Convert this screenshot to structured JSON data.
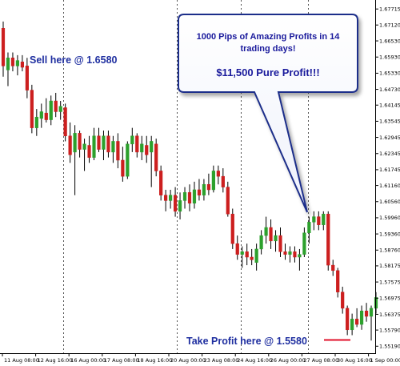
{
  "chart_data": {
    "type": "candlestick",
    "colors": {
      "up": "#2ca02c",
      "down": "#cc1f1f",
      "annotation": "#1f2fa0",
      "bubble_text": "#1a1a9c",
      "bubble_fill": "#ffffff",
      "take_profit_line": "#e0102a"
    },
    "ylim": [
      1.5505,
      1.679
    ],
    "grid": "vertical-dotted",
    "x_tick_labels": [
      "11 Aug 08:00",
      "12 Aug 16:00",
      "16 Aug 00:00",
      "17 Aug 08:00",
      "18 Aug 16:00",
      "20 Aug 00:00",
      "23 Aug 08:00",
      "24 Aug 16:00",
      "26 Aug 00:00",
      "27 Aug 08:00",
      "30 Aug 16:00",
      "1 Sep 00:00"
    ],
    "y_tick_labels": [
      "1.67715",
      "1.67120",
      "1.66530",
      "1.65930",
      "1.65330",
      "1.64730",
      "1.64145",
      "1.63545",
      "1.62945",
      "1.62345",
      "1.61745",
      "1.61160",
      "1.60560",
      "1.59960",
      "1.59360",
      "1.58760",
      "1.58175",
      "1.57575",
      "1.56975",
      "1.56375",
      "1.55790",
      "1.55190"
    ],
    "candles": [
      {
        "o": 1.67,
        "h": 1.6725,
        "l": 1.652,
        "c": 1.656
      },
      {
        "o": 1.6545,
        "h": 1.661,
        "l": 1.6485,
        "c": 1.659
      },
      {
        "o": 1.659,
        "h": 1.661,
        "l": 1.654,
        "c": 1.656
      },
      {
        "o": 1.656,
        "h": 1.66,
        "l": 1.6525,
        "c": 1.658
      },
      {
        "o": 1.6575,
        "h": 1.66,
        "l": 1.654,
        "c": 1.6555
      },
      {
        "o": 1.656,
        "h": 1.659,
        "l": 1.644,
        "c": 1.647
      },
      {
        "o": 1.647,
        "h": 1.649,
        "l": 1.631,
        "c": 1.633
      },
      {
        "o": 1.633,
        "h": 1.64,
        "l": 1.63,
        "c": 1.637
      },
      {
        "o": 1.6365,
        "h": 1.642,
        "l": 1.633,
        "c": 1.639
      },
      {
        "o": 1.6385,
        "h": 1.644,
        "l": 1.635,
        "c": 1.636
      },
      {
        "o": 1.636,
        "h": 1.645,
        "l": 1.634,
        "c": 1.643
      },
      {
        "o": 1.643,
        "h": 1.646,
        "l": 1.637,
        "c": 1.639
      },
      {
        "o": 1.639,
        "h": 1.643,
        "l": 1.636,
        "c": 1.641
      },
      {
        "o": 1.6405,
        "h": 1.642,
        "l": 1.628,
        "c": 1.63
      },
      {
        "o": 1.63,
        "h": 1.635,
        "l": 1.62,
        "c": 1.623
      },
      {
        "o": 1.624,
        "h": 1.634,
        "l": 1.608,
        "c": 1.631
      },
      {
        "o": 1.631,
        "h": 1.632,
        "l": 1.622,
        "c": 1.625
      },
      {
        "o": 1.625,
        "h": 1.629,
        "l": 1.617,
        "c": 1.627
      },
      {
        "o": 1.6265,
        "h": 1.63,
        "l": 1.62,
        "c": 1.622
      },
      {
        "o": 1.622,
        "h": 1.633,
        "l": 1.621,
        "c": 1.63
      },
      {
        "o": 1.63,
        "h": 1.633,
        "l": 1.624,
        "c": 1.625
      },
      {
        "o": 1.625,
        "h": 1.632,
        "l": 1.621,
        "c": 1.63
      },
      {
        "o": 1.63,
        "h": 1.632,
        "l": 1.622,
        "c": 1.624
      },
      {
        "o": 1.624,
        "h": 1.63,
        "l": 1.62,
        "c": 1.628
      },
      {
        "o": 1.628,
        "h": 1.631,
        "l": 1.618,
        "c": 1.621
      },
      {
        "o": 1.621,
        "h": 1.626,
        "l": 1.613,
        "c": 1.615
      },
      {
        "o": 1.615,
        "h": 1.628,
        "l": 1.614,
        "c": 1.627
      },
      {
        "o": 1.627,
        "h": 1.633,
        "l": 1.624,
        "c": 1.63
      },
      {
        "o": 1.63,
        "h": 1.631,
        "l": 1.622,
        "c": 1.624
      },
      {
        "o": 1.624,
        "h": 1.63,
        "l": 1.621,
        "c": 1.627
      },
      {
        "o": 1.6265,
        "h": 1.63,
        "l": 1.62,
        "c": 1.623
      },
      {
        "o": 1.624,
        "h": 1.63,
        "l": 1.611,
        "c": 1.628
      },
      {
        "o": 1.627,
        "h": 1.629,
        "l": 1.615,
        "c": 1.617
      },
      {
        "o": 1.617,
        "h": 1.619,
        "l": 1.606,
        "c": 1.608
      },
      {
        "o": 1.608,
        "h": 1.61,
        "l": 1.602,
        "c": 1.606
      },
      {
        "o": 1.606,
        "h": 1.61,
        "l": 1.603,
        "c": 1.608
      },
      {
        "o": 1.608,
        "h": 1.611,
        "l": 1.6,
        "c": 1.602
      },
      {
        "o": 1.602,
        "h": 1.609,
        "l": 1.599,
        "c": 1.606
      },
      {
        "o": 1.606,
        "h": 1.611,
        "l": 1.603,
        "c": 1.609
      },
      {
        "o": 1.609,
        "h": 1.612,
        "l": 1.602,
        "c": 1.605
      },
      {
        "o": 1.605,
        "h": 1.613,
        "l": 1.603,
        "c": 1.61
      },
      {
        "o": 1.61,
        "h": 1.614,
        "l": 1.606,
        "c": 1.608
      },
      {
        "o": 1.608,
        "h": 1.614,
        "l": 1.606,
        "c": 1.612
      },
      {
        "o": 1.612,
        "h": 1.616,
        "l": 1.608,
        "c": 1.61
      },
      {
        "o": 1.61,
        "h": 1.619,
        "l": 1.609,
        "c": 1.617
      },
      {
        "o": 1.617,
        "h": 1.619,
        "l": 1.612,
        "c": 1.615
      },
      {
        "o": 1.615,
        "h": 1.618,
        "l": 1.609,
        "c": 1.611
      },
      {
        "o": 1.611,
        "h": 1.613,
        "l": 1.6,
        "c": 1.601
      },
      {
        "o": 1.601,
        "h": 1.603,
        "l": 1.588,
        "c": 1.59
      },
      {
        "o": 1.59,
        "h": 1.593,
        "l": 1.584,
        "c": 1.586
      },
      {
        "o": 1.586,
        "h": 1.589,
        "l": 1.581,
        "c": 1.587
      },
      {
        "o": 1.587,
        "h": 1.59,
        "l": 1.582,
        "c": 1.585
      },
      {
        "o": 1.585,
        "h": 1.588,
        "l": 1.582,
        "c": 1.584
      },
      {
        "o": 1.583,
        "h": 1.59,
        "l": 1.58,
        "c": 1.588
      },
      {
        "o": 1.588,
        "h": 1.595,
        "l": 1.586,
        "c": 1.593
      },
      {
        "o": 1.593,
        "h": 1.6,
        "l": 1.59,
        "c": 1.596
      },
      {
        "o": 1.596,
        "h": 1.599,
        "l": 1.588,
        "c": 1.591
      },
      {
        "o": 1.591,
        "h": 1.595,
        "l": 1.587,
        "c": 1.593
      },
      {
        "o": 1.593,
        "h": 1.596,
        "l": 1.585,
        "c": 1.587
      },
      {
        "o": 1.587,
        "h": 1.59,
        "l": 1.584,
        "c": 1.586
      },
      {
        "o": 1.586,
        "h": 1.589,
        "l": 1.583,
        "c": 1.587
      },
      {
        "o": 1.587,
        "h": 1.589,
        "l": 1.583,
        "c": 1.585
      },
      {
        "o": 1.585,
        "h": 1.588,
        "l": 1.58,
        "c": 1.586
      },
      {
        "o": 1.586,
        "h": 1.596,
        "l": 1.585,
        "c": 1.594
      },
      {
        "o": 1.594,
        "h": 1.6,
        "l": 1.59,
        "c": 1.598
      },
      {
        "o": 1.598,
        "h": 1.602,
        "l": 1.595,
        "c": 1.6
      },
      {
        "o": 1.6,
        "h": 1.602,
        "l": 1.595,
        "c": 1.597
      },
      {
        "o": 1.597,
        "h": 1.602,
        "l": 1.595,
        "c": 1.601
      },
      {
        "o": 1.601,
        "h": 1.602,
        "l": 1.58,
        "c": 1.582
      },
      {
        "o": 1.582,
        "h": 1.584,
        "l": 1.578,
        "c": 1.58
      },
      {
        "o": 1.58,
        "h": 1.581,
        "l": 1.57,
        "c": 1.572
      },
      {
        "o": 1.572,
        "h": 1.574,
        "l": 1.564,
        "c": 1.566
      },
      {
        "o": 1.566,
        "h": 1.567,
        "l": 1.556,
        "c": 1.558
      },
      {
        "o": 1.558,
        "h": 1.564,
        "l": 1.556,
        "c": 1.562
      },
      {
        "o": 1.562,
        "h": 1.566,
        "l": 1.559,
        "c": 1.56
      },
      {
        "o": 1.56,
        "h": 1.567,
        "l": 1.558,
        "c": 1.565
      },
      {
        "o": 1.565,
        "h": 1.568,
        "l": 1.561,
        "c": 1.563
      },
      {
        "o": 1.563,
        "h": 1.567,
        "l": 1.554,
        "c": 1.566
      },
      {
        "o": 1.566,
        "h": 1.572,
        "l": 1.564,
        "c": 1.57
      }
    ],
    "annotations": {
      "sell": "Sell here @ 1.6580",
      "take_profit": "Take Profit here @ 1.5580",
      "bubble_line1": "1000 Pips of Amazing Profits in 14",
      "bubble_line2": "trading days!",
      "bubble_line3": "$11,500 Pure Profit!!!"
    }
  }
}
